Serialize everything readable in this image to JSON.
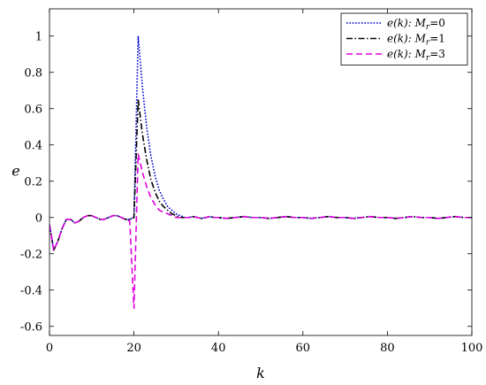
{
  "chart_data": {
    "type": "line",
    "xlabel": "k",
    "ylabel": "e",
    "xlim": [
      0,
      100
    ],
    "ylim": [
      -0.65,
      1.15
    ],
    "xticks": [
      0,
      20,
      40,
      60,
      80,
      100
    ],
    "xtick_labels": [
      "0",
      "20",
      "40",
      "60",
      "80",
      "100"
    ],
    "yticks": [
      -0.6,
      -0.4,
      -0.2,
      0,
      0.2,
      0.4,
      0.6,
      0.8,
      1
    ],
    "ytick_labels": [
      "-0.6",
      "-0.4",
      "-0.2",
      "0",
      "0.2",
      "0.4",
      "0.6",
      "0.8",
      "1"
    ],
    "grid": false,
    "legend_position": "top-right",
    "x": [
      0,
      1,
      2,
      3,
      4,
      5,
      6,
      7,
      8,
      9,
      10,
      11,
      12,
      13,
      14,
      15,
      16,
      17,
      18,
      19,
      20,
      21,
      22,
      23,
      24,
      25,
      26,
      27,
      28,
      29,
      30,
      31,
      32,
      33,
      34,
      35,
      36,
      37,
      38,
      39,
      40,
      42,
      44,
      46,
      48,
      50,
      52,
      54,
      56,
      58,
      60,
      62,
      64,
      66,
      68,
      70,
      72,
      74,
      76,
      78,
      80,
      82,
      84,
      86,
      88,
      90,
      92,
      94,
      96,
      98,
      100
    ],
    "series": [
      {
        "name": "e(k): Mᵣ=0",
        "legend_main": "e(k): ",
        "legend_sym": "M",
        "legend_sub": "r",
        "legend_val": "=0",
        "color": "#0000cc",
        "dash": "1.6 1.8",
        "values": [
          -0.04,
          -0.18,
          -0.13,
          -0.06,
          -0.01,
          -0.01,
          -0.03,
          -0.02,
          0.0,
          0.01,
          0.01,
          0.0,
          -0.01,
          -0.01,
          0.0,
          0.01,
          0.01,
          0.0,
          -0.01,
          -0.01,
          0.0,
          1.0,
          0.72,
          0.5,
          0.34,
          0.23,
          0.15,
          0.1,
          0.06,
          0.04,
          0.02,
          0.01,
          0.0,
          0.0,
          0.005,
          0.0,
          -0.005,
          0.0,
          0.005,
          0.0,
          0.0,
          -0.005,
          0.0,
          0.005,
          0.0,
          0.0,
          -0.005,
          0.0,
          0.005,
          0.0,
          0.0,
          -0.005,
          0.0,
          0.005,
          0.0,
          0.0,
          -0.005,
          0.0,
          0.005,
          0.0,
          0.0,
          -0.005,
          0.0,
          0.005,
          0.0,
          0.0,
          -0.005,
          0.0,
          0.005,
          0.0,
          0.0
        ]
      },
      {
        "name": "e(k): Mᵣ=1",
        "legend_main": "e(k): ",
        "legend_sym": "M",
        "legend_sub": "r",
        "legend_val": "=1",
        "color": "#000000",
        "dash": "7 2.5 1.5 2.5",
        "values": [
          -0.04,
          -0.18,
          -0.13,
          -0.06,
          -0.01,
          -0.01,
          -0.03,
          -0.02,
          0.0,
          0.01,
          0.01,
          0.0,
          -0.01,
          -0.01,
          0.0,
          0.01,
          0.01,
          0.0,
          -0.01,
          -0.01,
          0.0,
          0.65,
          0.46,
          0.32,
          0.21,
          0.14,
          0.09,
          0.06,
          0.04,
          0.02,
          0.01,
          0.0,
          0.0,
          0.0,
          0.005,
          0.0,
          -0.005,
          0.0,
          0.005,
          0.0,
          0.0,
          -0.005,
          0.0,
          0.005,
          0.0,
          0.0,
          -0.005,
          0.0,
          0.005,
          0.0,
          0.0,
          -0.005,
          0.0,
          0.005,
          0.0,
          0.0,
          -0.005,
          0.0,
          0.005,
          0.0,
          0.0,
          -0.005,
          0.0,
          0.005,
          0.0,
          0.0,
          -0.005,
          0.0,
          0.005,
          0.0,
          0.0
        ]
      },
      {
        "name": "e(k): Mᵣ=3",
        "legend_main": "e(k): ",
        "legend_sym": "M",
        "legend_sub": "r",
        "legend_val": "=3",
        "color": "#dd00dd",
        "dash": "7 4",
        "values": [
          -0.04,
          -0.18,
          -0.13,
          -0.06,
          -0.01,
          -0.01,
          -0.03,
          -0.02,
          0.0,
          0.01,
          0.01,
          0.0,
          -0.01,
          -0.01,
          0.0,
          0.01,
          0.01,
          0.0,
          -0.01,
          -0.02,
          -0.5,
          0.35,
          0.25,
          0.17,
          0.11,
          0.07,
          0.04,
          0.03,
          0.02,
          0.01,
          0.0,
          0.0,
          0.0,
          0.0,
          0.005,
          0.0,
          -0.005,
          0.0,
          0.005,
          0.0,
          0.0,
          -0.005,
          0.0,
          0.005,
          0.0,
          0.0,
          -0.005,
          0.0,
          0.005,
          0.0,
          0.0,
          -0.005,
          0.0,
          0.005,
          0.0,
          0.0,
          -0.005,
          0.0,
          0.005,
          0.0,
          0.0,
          -0.005,
          0.0,
          0.005,
          0.0,
          0.0,
          -0.005,
          0.0,
          0.005,
          0.0,
          0.0
        ]
      }
    ]
  }
}
